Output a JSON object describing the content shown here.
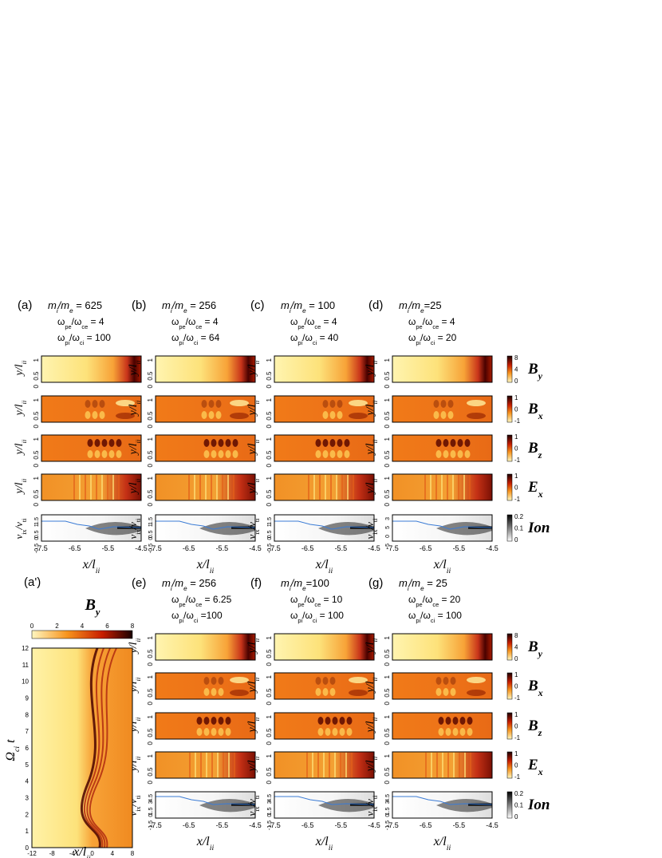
{
  "colors": {
    "hot_dark": "#2a0000",
    "hot_red": "#c81e00",
    "hot_orange": "#f07a18",
    "hot_yellow": "#ffe066",
    "hot_pale": "#fff7b8",
    "ion_gray": "#333333",
    "blue_line": "#3a7bd5"
  },
  "groups": {
    "top": [
      {
        "letter": "(a)",
        "l1a": "m",
        "l1b": "i",
        "l1c": "/m",
        "l1d": "e",
        "l1e": " = 625",
        "l2": "ω",
        "l2s": "pe",
        "l2c": "/ω",
        "l2d": "ce",
        "l2e": " = 4",
        "l3": "ω",
        "l3s": "pi",
        "l3c": "/ω",
        "l3d": "ci",
        "l3e": " = 100"
      },
      {
        "letter": "(b)",
        "l1a": "m",
        "l1b": "i",
        "l1c": "/m",
        "l1d": "e",
        "l1e": " = 256",
        "l2": "ω",
        "l2s": "pe",
        "l2c": "/ω",
        "l2d": "ce",
        "l2e": " = 4",
        "l3": "ω",
        "l3s": "pi",
        "l3c": "/ω",
        "l3d": "ci",
        "l3e": " = 64"
      },
      {
        "letter": "(c)",
        "l1a": "m",
        "l1b": "i",
        "l1c": "/m",
        "l1d": "e",
        "l1e": " = 100",
        "l2": "ω",
        "l2s": "pe",
        "l2c": "/ω",
        "l2d": "ce",
        "l2e": " = 4",
        "l3": "ω",
        "l3s": "pi",
        "l3c": "/ω",
        "l3d": "ci",
        "l3e": " = 40"
      },
      {
        "letter": "(d)",
        "l1a": "m",
        "l1b": "i",
        "l1c": "/m",
        "l1d": "e",
        "l1e": "=25",
        "l2": "ω",
        "l2s": "pe",
        "l2c": "/ω",
        "l2d": "ce",
        "l2e": " = 4",
        "l3": "ω",
        "l3s": "pi",
        "l3c": "/ω",
        "l3d": "ci",
        "l3e": " = 20"
      }
    ],
    "bottom": [
      {
        "letter": "(e)",
        "l1a": "m",
        "l1b": "i",
        "l1c": "/m",
        "l1d": "e",
        "l1e": " = 256",
        "l2": "ω",
        "l2s": "pe",
        "l2c": "/ω",
        "l2d": "ce",
        "l2e": " = 6.25",
        "l3": "ω",
        "l3s": "pi",
        "l3c": "/ω",
        "l3d": "ci",
        "l3e": " =100"
      },
      {
        "letter": "(f)",
        "l1a": "m",
        "l1b": "i",
        "l1c": "/m",
        "l1d": "e",
        "l1e": "=100",
        "l2": "ω",
        "l2s": "pe",
        "l2c": "/ω",
        "l2d": "ce",
        "l2e": " = 10",
        "l3": "ω",
        "l3s": "pi",
        "l3c": "/ω",
        "l3d": "ci",
        "l3e": " = 100"
      },
      {
        "letter": "(g)",
        "l1a": "m",
        "l1b": "i",
        "l1c": "/m",
        "l1d": "e",
        "l1e": " = 25",
        "l2": "ω",
        "l2s": "pe",
        "l2c": "/ω",
        "l2d": "ce",
        "l2e": " = 20",
        "l3": "ω",
        "l3s": "pi",
        "l3c": "/ω",
        "l3d": "ci",
        "l3e": " = 100"
      }
    ]
  },
  "row_labels": [
    "B",
    "B",
    "B",
    "E",
    "Ion"
  ],
  "row_label_subs": [
    "y",
    "x",
    "z",
    "x",
    ""
  ],
  "ylabel_field": {
    "main": "y/l",
    "sub": "ii"
  },
  "ylabel_phase": {
    "main": "v",
    "sub": "ix",
    "mid": "/v",
    "sub2": "ti"
  },
  "field_yticks": [
    "0",
    "0.5",
    "1"
  ],
  "phase_yticks_top": [
    "-0.5",
    "0",
    "0.5",
    "1",
    "1.5"
  ],
  "phase_yticks_bottom": [
    "-1.5",
    "0",
    "1.5",
    "3",
    "4.5"
  ],
  "phase_yticks_top_d": [
    "-5",
    "0",
    "5",
    "3"
  ],
  "xticks_top": [
    "-7.5",
    "-6.5",
    "-5.5",
    "-4.5"
  ],
  "xticks_bottom": [
    "-7.5",
    "-6.5",
    "-5.5",
    "-4.5"
  ],
  "xlabel": {
    "main": "x/l",
    "sub": "ii"
  },
  "cbar_top": {
    "By": [
      "8",
      "4",
      "0"
    ],
    "Bx": [
      "1",
      "0",
      "-1"
    ],
    "Bz": [
      "1",
      "0",
      "-1"
    ],
    "Ex": [
      "1",
      "0",
      "-1"
    ],
    "Ion": [
      "0.2",
      "0.1",
      "0"
    ]
  },
  "panel_a_prime": {
    "letter": "(a')",
    "title_main": "B",
    "title_sub": "y",
    "cbar_ticks": [
      "0",
      "2",
      "4",
      "6",
      "8"
    ],
    "yticks": [
      "0",
      "1",
      "2",
      "3",
      "4",
      "5",
      "6",
      "7",
      "8",
      "9",
      "10",
      "11",
      "12"
    ],
    "xticks": [
      "-12",
      "-8",
      "-4",
      "0",
      "4",
      "8"
    ],
    "ylabel_main": "Ω",
    "ylabel_sub": "ci",
    "ylabel_t": "t",
    "xlabel_main": "x/l",
    "xlabel_sub": "ii"
  }
}
